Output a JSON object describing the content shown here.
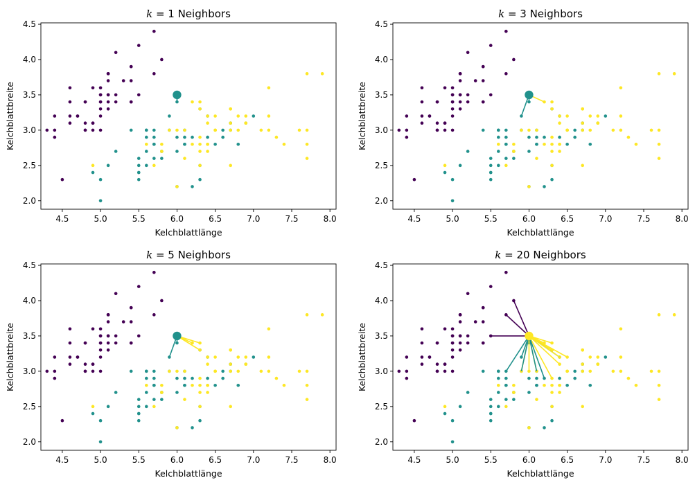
{
  "colors": {
    "class0": "#440154",
    "class1": "#21918c",
    "class2": "#fde725"
  },
  "points": [
    [
      5.1,
      3.5,
      0
    ],
    [
      4.9,
      3.0,
      0
    ],
    [
      4.7,
      3.2,
      0
    ],
    [
      4.6,
      3.1,
      0
    ],
    [
      5.0,
      3.6,
      0
    ],
    [
      5.4,
      3.9,
      0
    ],
    [
      4.6,
      3.4,
      0
    ],
    [
      5.0,
      3.4,
      0
    ],
    [
      4.4,
      2.9,
      0
    ],
    [
      4.9,
      3.1,
      0
    ],
    [
      5.4,
      3.7,
      0
    ],
    [
      4.8,
      3.4,
      0
    ],
    [
      4.8,
      3.0,
      0
    ],
    [
      4.3,
      3.0,
      0
    ],
    [
      5.8,
      4.0,
      0
    ],
    [
      5.7,
      4.4,
      0
    ],
    [
      5.4,
      3.9,
      0
    ],
    [
      5.1,
      3.5,
      0
    ],
    [
      5.7,
      3.8,
      0
    ],
    [
      5.1,
      3.8,
      0
    ],
    [
      5.4,
      3.4,
      0
    ],
    [
      5.1,
      3.7,
      0
    ],
    [
      4.6,
      3.6,
      0
    ],
    [
      5.1,
      3.3,
      0
    ],
    [
      4.8,
      3.4,
      0
    ],
    [
      5.0,
      3.0,
      0
    ],
    [
      5.0,
      3.4,
      0
    ],
    [
      5.2,
      3.5,
      0
    ],
    [
      5.2,
      3.4,
      0
    ],
    [
      4.7,
      3.2,
      0
    ],
    [
      4.8,
      3.1,
      0
    ],
    [
      5.4,
      3.4,
      0
    ],
    [
      5.2,
      4.1,
      0
    ],
    [
      5.5,
      4.2,
      0
    ],
    [
      4.9,
      3.1,
      0
    ],
    [
      5.0,
      3.2,
      0
    ],
    [
      5.5,
      3.5,
      0
    ],
    [
      4.9,
      3.6,
      0
    ],
    [
      4.4,
      3.0,
      0
    ],
    [
      5.1,
      3.4,
      0
    ],
    [
      5.0,
      3.5,
      0
    ],
    [
      4.5,
      2.3,
      0
    ],
    [
      4.4,
      3.2,
      0
    ],
    [
      5.0,
      3.5,
      0
    ],
    [
      5.1,
      3.8,
      0
    ],
    [
      4.8,
      3.0,
      0
    ],
    [
      5.1,
      3.8,
      0
    ],
    [
      4.6,
      3.2,
      0
    ],
    [
      5.3,
      3.7,
      0
    ],
    [
      5.0,
      3.3,
      0
    ],
    [
      7.0,
      3.2,
      1
    ],
    [
      6.4,
      3.2,
      1
    ],
    [
      6.9,
      3.1,
      1
    ],
    [
      5.5,
      2.3,
      1
    ],
    [
      6.5,
      2.8,
      1
    ],
    [
      5.7,
      2.8,
      1
    ],
    [
      6.3,
      3.3,
      1
    ],
    [
      4.9,
      2.4,
      1
    ],
    [
      6.6,
      2.9,
      1
    ],
    [
      5.2,
      2.7,
      1
    ],
    [
      5.0,
      2.0,
      1
    ],
    [
      5.9,
      3.0,
      1
    ],
    [
      6.0,
      2.2,
      1
    ],
    [
      6.1,
      2.9,
      1
    ],
    [
      5.6,
      2.9,
      1
    ],
    [
      6.7,
      3.1,
      1
    ],
    [
      5.6,
      3.0,
      1
    ],
    [
      5.8,
      2.7,
      1
    ],
    [
      6.2,
      2.2,
      1
    ],
    [
      5.6,
      2.5,
      1
    ],
    [
      5.9,
      3.2,
      1
    ],
    [
      6.1,
      2.8,
      1
    ],
    [
      6.3,
      2.5,
      1
    ],
    [
      6.1,
      2.8,
      1
    ],
    [
      6.4,
      2.9,
      1
    ],
    [
      6.6,
      3.0,
      1
    ],
    [
      6.8,
      2.8,
      1
    ],
    [
      6.7,
      3.0,
      1
    ],
    [
      6.0,
      2.9,
      1
    ],
    [
      5.7,
      2.6,
      1
    ],
    [
      5.5,
      2.4,
      1
    ],
    [
      5.5,
      2.4,
      1
    ],
    [
      5.8,
      2.7,
      1
    ],
    [
      6.0,
      2.7,
      1
    ],
    [
      5.4,
      3.0,
      1
    ],
    [
      6.0,
      3.4,
      1
    ],
    [
      6.7,
      3.1,
      1
    ],
    [
      6.3,
      2.3,
      1
    ],
    [
      5.6,
      3.0,
      1
    ],
    [
      5.5,
      2.5,
      1
    ],
    [
      5.5,
      2.6,
      1
    ],
    [
      6.1,
      3.0,
      1
    ],
    [
      5.8,
      2.6,
      1
    ],
    [
      5.0,
      2.3,
      1
    ],
    [
      5.6,
      2.7,
      1
    ],
    [
      5.7,
      3.0,
      1
    ],
    [
      5.7,
      2.9,
      1
    ],
    [
      6.2,
      2.9,
      1
    ],
    [
      5.1,
      2.5,
      1
    ],
    [
      5.7,
      2.8,
      1
    ],
    [
      6.3,
      3.3,
      2
    ],
    [
      5.8,
      2.7,
      2
    ],
    [
      7.1,
      3.0,
      2
    ],
    [
      6.3,
      2.9,
      2
    ],
    [
      6.5,
      3.0,
      2
    ],
    [
      7.6,
      3.0,
      2
    ],
    [
      4.9,
      2.5,
      2
    ],
    [
      7.3,
      2.9,
      2
    ],
    [
      6.7,
      2.5,
      2
    ],
    [
      7.2,
      3.6,
      2
    ],
    [
      6.5,
      3.2,
      2
    ],
    [
      6.4,
      2.7,
      2
    ],
    [
      6.8,
      3.0,
      2
    ],
    [
      5.7,
      2.5,
      2
    ],
    [
      5.8,
      2.8,
      2
    ],
    [
      6.4,
      3.2,
      2
    ],
    [
      6.5,
      3.0,
      2
    ],
    [
      7.7,
      3.8,
      2
    ],
    [
      7.7,
      2.6,
      2
    ],
    [
      6.0,
      2.2,
      2
    ],
    [
      6.9,
      3.2,
      2
    ],
    [
      5.6,
      2.8,
      2
    ],
    [
      7.7,
      2.8,
      2
    ],
    [
      6.3,
      2.7,
      2
    ],
    [
      6.7,
      3.3,
      2
    ],
    [
      7.2,
      3.2,
      2
    ],
    [
      6.2,
      2.8,
      2
    ],
    [
      6.1,
      3.0,
      2
    ],
    [
      6.4,
      2.8,
      2
    ],
    [
      7.2,
      3.0,
      2
    ],
    [
      7.4,
      2.8,
      2
    ],
    [
      7.9,
      3.8,
      2
    ],
    [
      6.4,
      2.8,
      2
    ],
    [
      6.3,
      2.8,
      2
    ],
    [
      6.1,
      2.6,
      2
    ],
    [
      7.7,
      3.0,
      2
    ],
    [
      6.3,
      3.4,
      2
    ],
    [
      6.4,
      3.1,
      2
    ],
    [
      6.0,
      3.0,
      2
    ],
    [
      6.9,
      3.1,
      2
    ],
    [
      6.7,
      3.1,
      2
    ],
    [
      6.9,
      3.1,
      2
    ],
    [
      5.8,
      2.7,
      2
    ],
    [
      6.8,
      3.2,
      2
    ],
    [
      6.7,
      3.3,
      2
    ],
    [
      6.7,
      3.0,
      2
    ],
    [
      6.3,
      2.5,
      2
    ],
    [
      6.5,
      3.0,
      2
    ],
    [
      6.2,
      3.4,
      2
    ],
    [
      5.9,
      3.0,
      2
    ]
  ],
  "query": {
    "x": 6.0,
    "y": 3.5
  },
  "chart_data": [
    {
      "type": "scatter",
      "title_italic": "k",
      "title_rest": " = 1 Neighbors",
      "xlabel": "Kelchblattlänge",
      "ylabel": "Kelchblattbreite",
      "xlim": [
        4.22,
        8.08
      ],
      "ylim": [
        1.88,
        4.52
      ],
      "xticks": [
        "4.5",
        "5.0",
        "5.5",
        "6.0",
        "6.5",
        "7.0",
        "7.5",
        "8.0"
      ],
      "yticks": [
        "2.0",
        "2.5",
        "3.0",
        "3.5",
        "4.0",
        "4.5"
      ],
      "query_class": 1,
      "neighbors": [
        [
          6.0,
          3.4,
          1
        ]
      ]
    },
    {
      "type": "scatter",
      "title_italic": "k",
      "title_rest": " = 3 Neighbors",
      "xlabel": "Kelchblattlänge",
      "ylabel": "Kelchblattbreite",
      "xlim": [
        4.22,
        8.08
      ],
      "ylim": [
        1.88,
        4.52
      ],
      "xticks": [
        "4.5",
        "5.0",
        "5.5",
        "6.0",
        "6.5",
        "7.0",
        "7.5",
        "8.0"
      ],
      "yticks": [
        "2.0",
        "2.5",
        "3.0",
        "3.5",
        "4.0",
        "4.5"
      ],
      "query_class": 1,
      "neighbors": [
        [
          6.0,
          3.4,
          1
        ],
        [
          6.2,
          3.4,
          2
        ],
        [
          5.9,
          3.2,
          1
        ]
      ]
    },
    {
      "type": "scatter",
      "title_italic": "k",
      "title_rest": " = 5 Neighbors",
      "xlabel": "Kelchblattlänge",
      "ylabel": "Kelchblattbreite",
      "xlim": [
        4.22,
        8.08
      ],
      "ylim": [
        1.88,
        4.52
      ],
      "xticks": [
        "4.5",
        "5.0",
        "5.5",
        "6.0",
        "6.5",
        "7.0",
        "7.5",
        "8.0"
      ],
      "yticks": [
        "2.0",
        "2.5",
        "3.0",
        "3.5",
        "4.0",
        "4.5"
      ],
      "query_class": 1,
      "neighbors": [
        [
          6.0,
          3.4,
          1
        ],
        [
          6.2,
          3.4,
          2
        ],
        [
          5.9,
          3.2,
          1
        ],
        [
          6.3,
          3.4,
          2
        ],
        [
          6.3,
          3.3,
          2
        ]
      ]
    },
    {
      "type": "scatter",
      "title_italic": "k",
      "title_rest": " = 20 Neighbors",
      "xlabel": "Kelchblattlänge",
      "ylabel": "Kelchblattbreite",
      "xlim": [
        4.22,
        8.08
      ],
      "ylim": [
        1.88,
        4.52
      ],
      "xticks": [
        "4.5",
        "5.0",
        "5.5",
        "6.0",
        "6.5",
        "7.0",
        "7.5",
        "8.0"
      ],
      "yticks": [
        "2.0",
        "2.5",
        "3.0",
        "3.5",
        "4.0",
        "4.5"
      ],
      "query_class": 2,
      "neighbors": [
        [
          6.0,
          3.4,
          1
        ],
        [
          6.2,
          3.4,
          2
        ],
        [
          5.9,
          3.2,
          1
        ],
        [
          6.3,
          3.4,
          2
        ],
        [
          6.3,
          3.3,
          2
        ],
        [
          5.7,
          3.8,
          0
        ],
        [
          5.5,
          3.5,
          0
        ],
        [
          5.8,
          4.0,
          0
        ],
        [
          5.9,
          3.0,
          2
        ],
        [
          5.9,
          3.0,
          1
        ],
        [
          6.0,
          3.0,
          2
        ],
        [
          6.4,
          3.2,
          1
        ],
        [
          6.4,
          3.2,
          2
        ],
        [
          6.1,
          3.0,
          2
        ],
        [
          6.1,
          3.0,
          1
        ],
        [
          6.4,
          3.1,
          2
        ],
        [
          5.7,
          3.0,
          1
        ],
        [
          6.5,
          3.2,
          2
        ],
        [
          6.3,
          2.9,
          2
        ],
        [
          6.2,
          2.9,
          1
        ]
      ]
    }
  ]
}
